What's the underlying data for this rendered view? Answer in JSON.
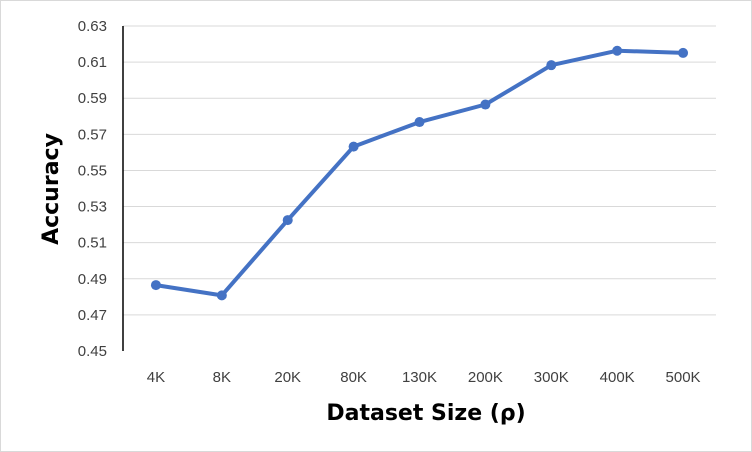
{
  "chart_data": {
    "type": "line",
    "title": "",
    "xlabel": "Dataset Size (ρ)",
    "ylabel": "Accuracy",
    "categories": [
      "4K",
      "8K",
      "20K",
      "80K",
      "130K",
      "200K",
      "300K",
      "400K",
      "500K"
    ],
    "series": [
      {
        "values": [
          0.4865,
          0.4808,
          0.5225,
          0.5632,
          0.5768,
          0.5865,
          0.6083,
          0.6163,
          0.6151
        ]
      }
    ],
    "ylim": [
      0.45,
      0.63
    ],
    "y_ticks": [
      "0.45",
      "0.47",
      "0.49",
      "0.51",
      "0.53",
      "0.55",
      "0.57",
      "0.59",
      "0.61",
      "0.63"
    ],
    "grid": "horizontal",
    "legend": "none",
    "colors": {
      "line": "#4472c4",
      "grid": "#d9d9d9",
      "axis": "#000000"
    }
  }
}
